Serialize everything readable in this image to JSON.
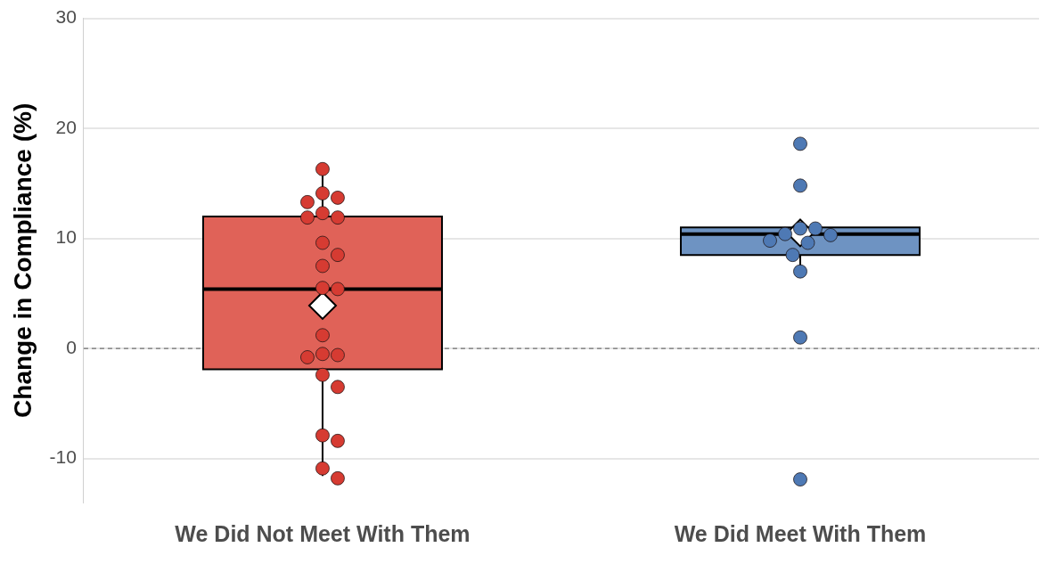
{
  "chart_data": {
    "type": "box",
    "ylabel": "Change in Compliance (%)",
    "categories": [
      "We Did Not Meet With Them",
      "We Did Meet With Them"
    ],
    "colors": [
      "#e06258",
      "#6e93c2"
    ],
    "boxes": [
      {
        "low": -11.6,
        "q1": -1.9,
        "median": 5.4,
        "q3": 12.0,
        "high": 16.2,
        "mean": 3.9
      },
      {
        "low": 7.0,
        "q1": 8.5,
        "median": 10.4,
        "q3": 11.0,
        "high": 11.0,
        "mean": 10.5
      }
    ],
    "series": [
      {
        "type": "scatter",
        "color": "#d63b32",
        "x": [
          "We Did Not Meet With Them",
          "We Did Not Meet With Them",
          "We Did Not Meet With Them",
          "We Did Not Meet With Them",
          "We Did Not Meet With Them",
          "We Did Not Meet With Them",
          "We Did Not Meet With Them",
          "We Did Not Meet With Them",
          "We Did Not Meet With Them",
          "We Did Not Meet With Them",
          "We Did Not Meet With Them",
          "We Did Not Meet With Them",
          "We Did Not Meet With Them",
          "We Did Not Meet With Them",
          "We Did Not Meet With Them",
          "We Did Not Meet With Them",
          "We Did Not Meet With Them",
          "We Did Not Meet With Them",
          "We Did Not Meet With Them",
          "We Did Not Meet With Them",
          "We Did Not Meet With Them",
          "We Did Not Meet With Them"
        ],
        "values": [
          16.3,
          14.1,
          13.7,
          13.3,
          12.3,
          11.9,
          11.9,
          9.6,
          8.5,
          7.5,
          5.4,
          5.5,
          1.2,
          -0.6,
          -0.5,
          -0.8,
          -2.4,
          -3.5,
          -7.9,
          -8.4,
          -10.9,
          -11.8
        ]
      },
      {
        "type": "scatter",
        "color": "#4e79b4",
        "x": [
          "We Did Meet With Them",
          "We Did Meet With Them",
          "We Did Meet With Them",
          "We Did Meet With Them",
          "We Did Meet With Them",
          "We Did Meet With Them",
          "We Did Meet With Them",
          "We Did Meet With Them",
          "We Did Meet With Them",
          "We Did Meet With Them",
          "We Did Meet With Them",
          "We Did Meet With Them"
        ],
        "values": [
          18.6,
          14.8,
          10.9,
          10.9,
          10.4,
          10.3,
          9.8,
          9.6,
          8.5,
          7.0,
          1.0,
          -11.9
        ]
      }
    ],
    "ylim": [
      -14,
      30
    ],
    "yticks": [
      -10,
      0,
      10,
      20,
      30
    ],
    "grid": "y",
    "legend": false,
    "marker": "circle",
    "ref_lines": [
      {
        "axis": "y",
        "value": 0,
        "line_style": "dashed",
        "color": "#555555"
      }
    ]
  }
}
